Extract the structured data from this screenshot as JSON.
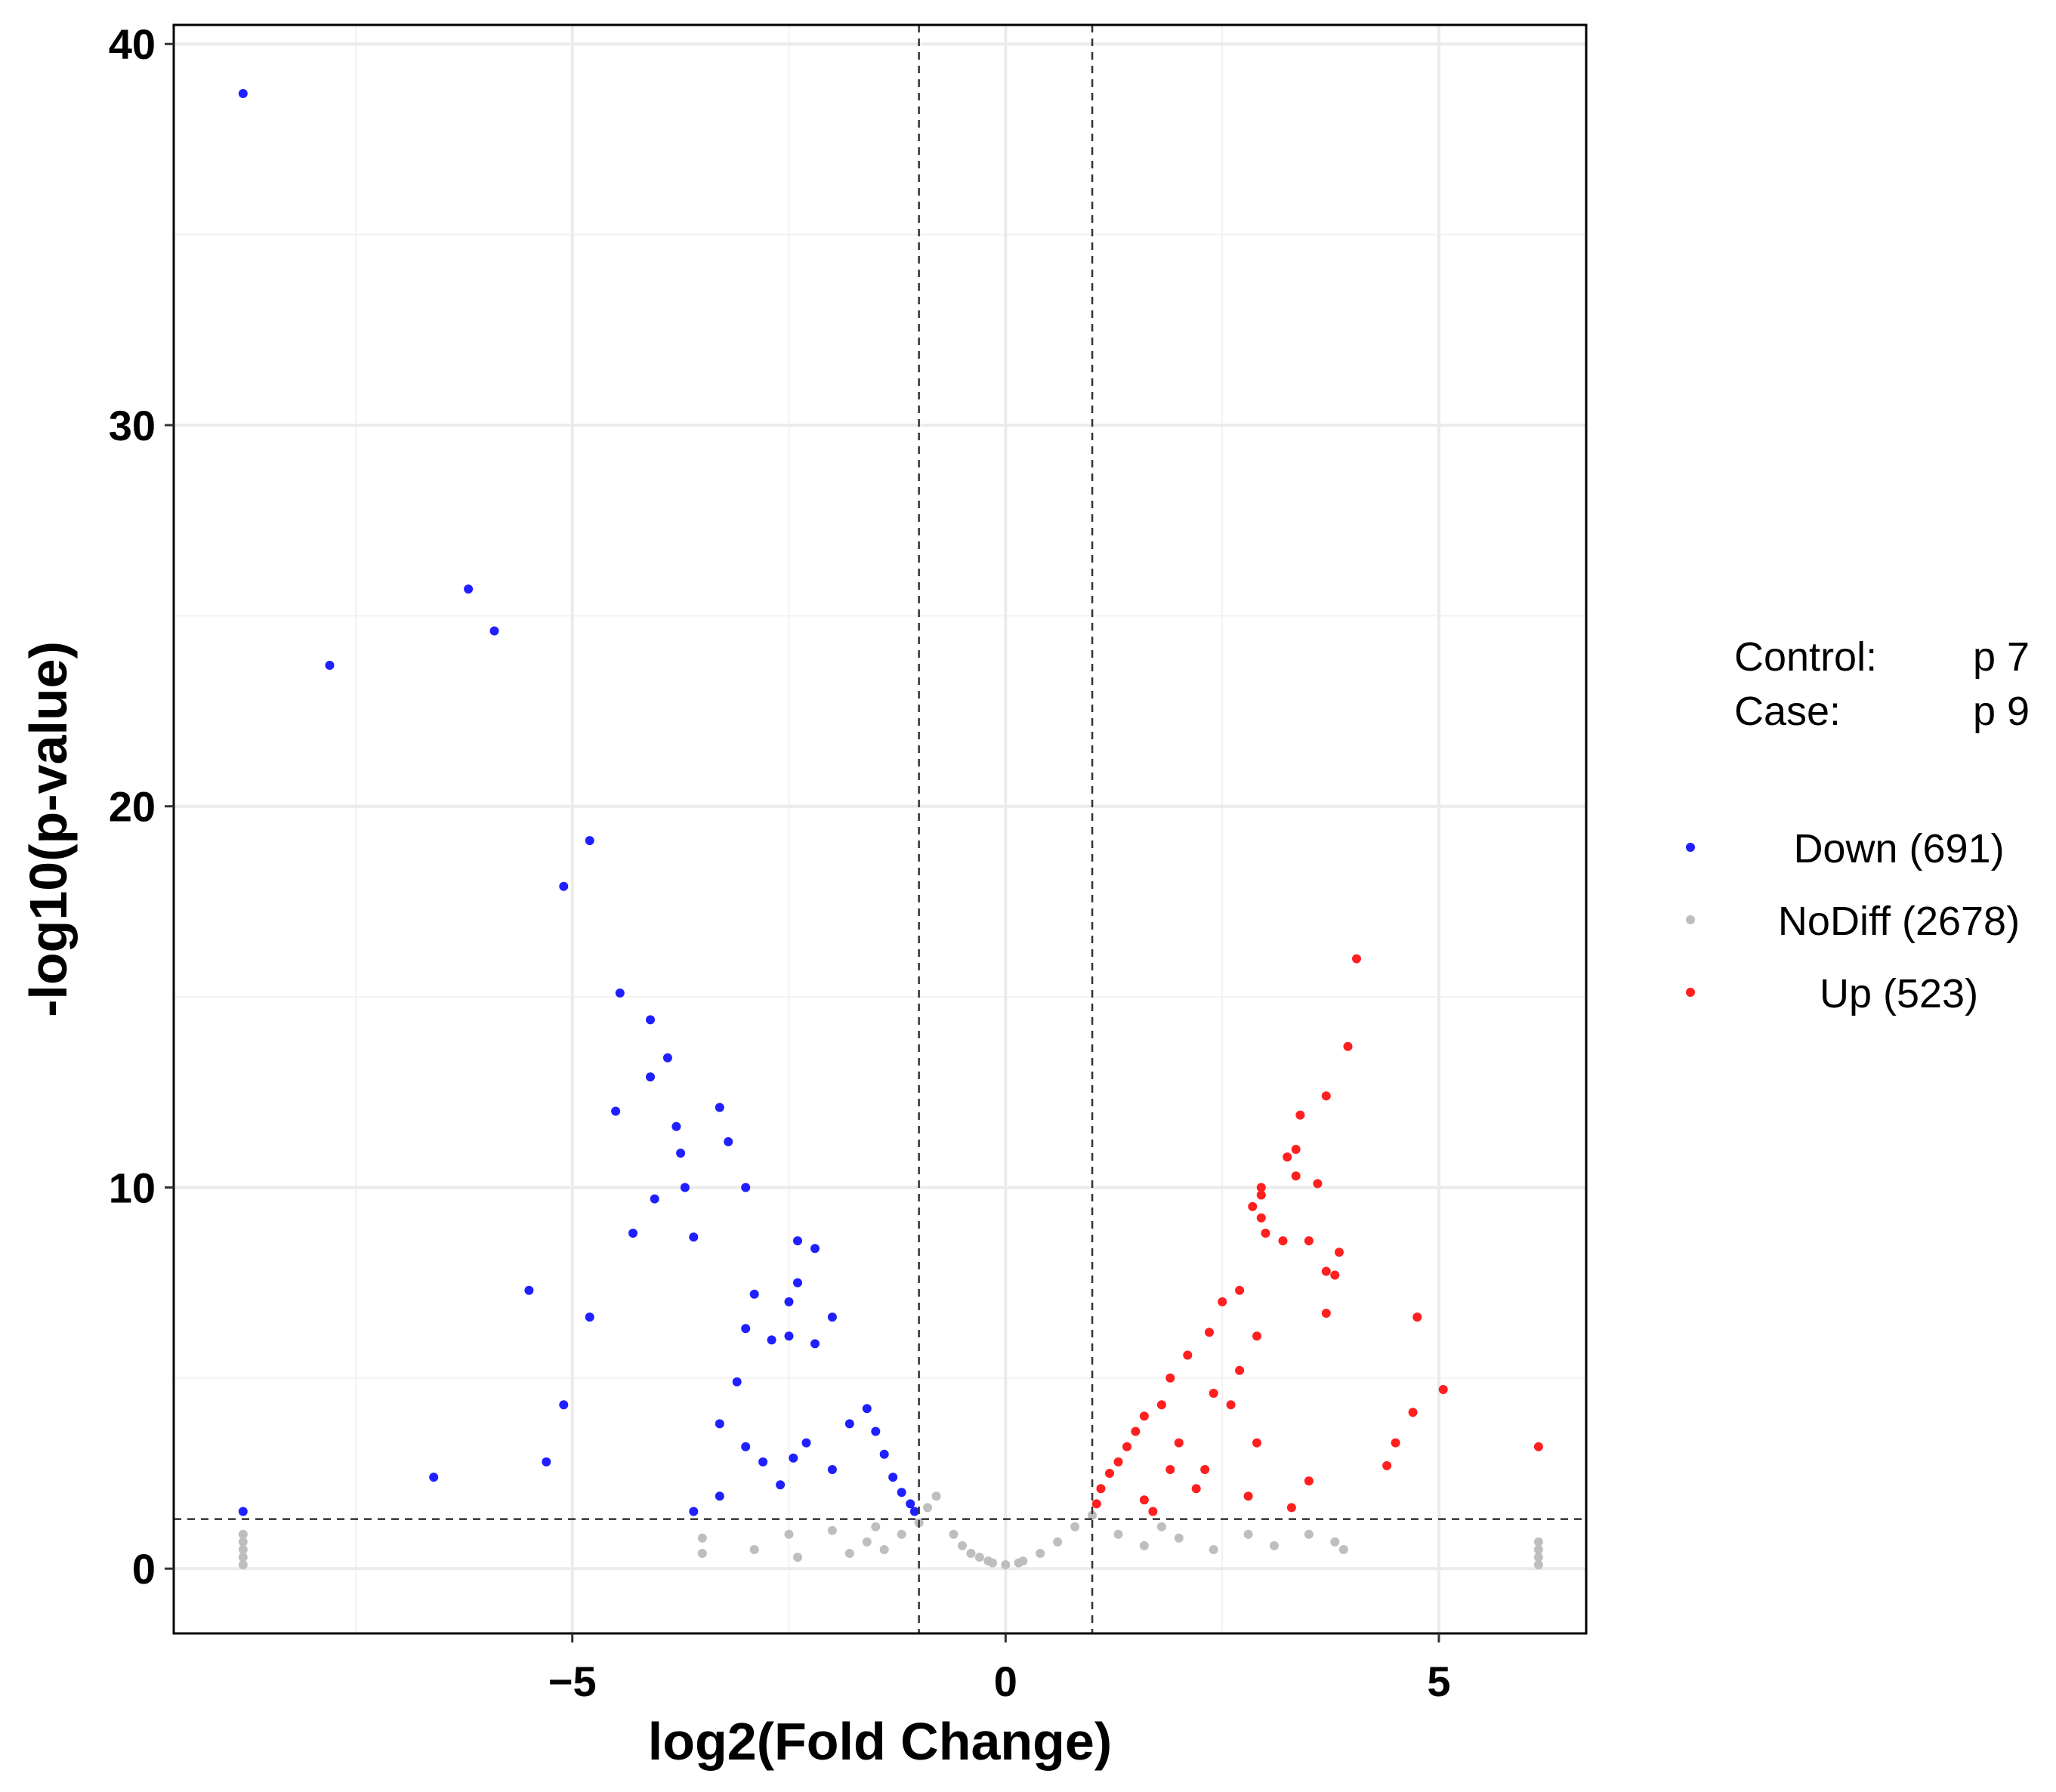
{
  "chart_data": {
    "type": "scatter",
    "title": "",
    "xlabel": "log2(Fold Change)",
    "ylabel": "-log10(p-value)",
    "xlim": [
      -9.6,
      6.7
    ],
    "ylim": [
      -1.7,
      40.5
    ],
    "x_ticks": [
      -5,
      0,
      5
    ],
    "x_tick_labels": [
      "−5",
      "0",
      "5"
    ],
    "y_ticks": [
      0,
      10,
      20,
      30,
      40
    ],
    "y_tick_labels": [
      "0",
      "10",
      "20",
      "30",
      "40"
    ],
    "grid": true,
    "thresholds": {
      "log2fc": [
        -1,
        1
      ],
      "neg_log10_p": 1.3
    },
    "info": {
      "control_label": "Control:",
      "control_value": "p 7",
      "case_label": "Case:",
      "case_value": "p 9"
    },
    "legend": {
      "position": "right",
      "entries": [
        {
          "name": "Down (691)",
          "color": "#1F1FFF"
        },
        {
          "name": "NoDiff (2678)",
          "color": "#BEBEBE"
        },
        {
          "name": "Up (523)",
          "color": "#FF1F1F"
        }
      ]
    },
    "series": [
      {
        "name": "Down",
        "color": "#1F1FFF",
        "count": 691,
        "points": [
          [
            -8.8,
            38.7
          ],
          [
            -7.8,
            23.7
          ],
          [
            -6.2,
            25.7
          ],
          [
            -5.9,
            24.6
          ],
          [
            -4.8,
            19.1
          ],
          [
            -5.1,
            17.9
          ],
          [
            -4.45,
            15.1
          ],
          [
            -4.1,
            14.4
          ],
          [
            -3.9,
            13.4
          ],
          [
            -4.1,
            12.9
          ],
          [
            -4.5,
            12.0
          ],
          [
            -3.8,
            11.6
          ],
          [
            -3.3,
            12.1
          ],
          [
            -3.2,
            11.2
          ],
          [
            -3.75,
            10.9
          ],
          [
            -3.0,
            10.0
          ],
          [
            -3.7,
            10.0
          ],
          [
            -4.05,
            9.7
          ],
          [
            -4.3,
            8.8
          ],
          [
            -3.6,
            8.7
          ],
          [
            -5.5,
            7.3
          ],
          [
            -4.8,
            6.6
          ],
          [
            -5.1,
            4.3
          ],
          [
            -5.3,
            2.8
          ],
          [
            -6.6,
            2.4
          ],
          [
            -3.6,
            1.5
          ],
          [
            -8.8,
            1.5
          ],
          [
            -3.3,
            1.9
          ],
          [
            -2.4,
            8.6
          ],
          [
            -2.2,
            8.4
          ],
          [
            -2.4,
            7.5
          ],
          [
            -2.5,
            7.0
          ],
          [
            -2.9,
            7.2
          ],
          [
            -2.0,
            6.6
          ],
          [
            -3.0,
            6.3
          ],
          [
            -2.7,
            6.0
          ],
          [
            -2.5,
            6.1
          ],
          [
            -2.2,
            5.9
          ],
          [
            -3.1,
            4.9
          ],
          [
            -3.3,
            3.8
          ],
          [
            -3.0,
            3.2
          ],
          [
            -2.8,
            2.8
          ],
          [
            -2.6,
            2.2
          ],
          [
            -2.3,
            3.3
          ],
          [
            -2.0,
            2.6
          ],
          [
            -1.8,
            3.8
          ],
          [
            -1.6,
            4.2
          ],
          [
            -1.5,
            3.6
          ],
          [
            -1.4,
            3.0
          ],
          [
            -1.3,
            2.4
          ],
          [
            -1.2,
            2.0
          ],
          [
            -1.1,
            1.7
          ],
          [
            -1.05,
            1.5
          ],
          [
            -2.45,
            2.9
          ]
        ]
      },
      {
        "name": "NoDiff",
        "color": "#BEBEBE",
        "count": 2678,
        "points": [
          [
            -8.8,
            0.1
          ],
          [
            -8.8,
            0.3
          ],
          [
            -8.8,
            0.5
          ],
          [
            -8.8,
            0.7
          ],
          [
            -8.8,
            0.9
          ],
          [
            6.15,
            0.1
          ],
          [
            6.15,
            0.3
          ],
          [
            6.15,
            0.5
          ],
          [
            6.15,
            0.7
          ],
          [
            -3.5,
            0.8
          ],
          [
            -3.5,
            0.4
          ],
          [
            -2.9,
            0.5
          ],
          [
            -2.5,
            0.9
          ],
          [
            -2.4,
            0.3
          ],
          [
            -2.0,
            1.0
          ],
          [
            -1.8,
            0.4
          ],
          [
            -1.6,
            0.7
          ],
          [
            -1.4,
            0.5
          ],
          [
            -1.2,
            0.9
          ],
          [
            -1.0,
            1.2
          ],
          [
            -0.9,
            1.6
          ],
          [
            -0.8,
            1.9
          ],
          [
            -0.6,
            0.9
          ],
          [
            -0.5,
            0.6
          ],
          [
            -0.4,
            0.4
          ],
          [
            -0.3,
            0.3
          ],
          [
            -0.2,
            0.2
          ],
          [
            0.0,
            0.1
          ],
          [
            0.2,
            0.2
          ],
          [
            0.4,
            0.4
          ],
          [
            0.6,
            0.7
          ],
          [
            0.8,
            1.1
          ],
          [
            1.0,
            1.4
          ],
          [
            1.3,
            0.9
          ],
          [
            1.6,
            0.6
          ],
          [
            2.0,
            0.8
          ],
          [
            2.4,
            0.5
          ],
          [
            2.8,
            0.9
          ],
          [
            3.1,
            0.6
          ],
          [
            3.5,
            0.9
          ],
          [
            3.8,
            0.7
          ],
          [
            3.9,
            0.5
          ],
          [
            1.8,
            1.1
          ],
          [
            -1.5,
            1.1
          ],
          [
            -0.15,
            0.15
          ],
          [
            0.15,
            0.15
          ]
        ]
      },
      {
        "name": "Up",
        "color": "#FF1F1F",
        "count": 523,
        "points": [
          [
            4.05,
            16.0
          ],
          [
            3.95,
            13.7
          ],
          [
            3.7,
            12.4
          ],
          [
            3.4,
            11.9
          ],
          [
            3.35,
            11.0
          ],
          [
            3.25,
            10.8
          ],
          [
            3.35,
            10.3
          ],
          [
            3.6,
            10.1
          ],
          [
            2.95,
            10.0
          ],
          [
            2.95,
            9.8
          ],
          [
            2.85,
            9.5
          ],
          [
            2.95,
            9.2
          ],
          [
            3.0,
            8.8
          ],
          [
            3.2,
            8.6
          ],
          [
            3.5,
            8.6
          ],
          [
            3.85,
            8.3
          ],
          [
            3.7,
            7.8
          ],
          [
            3.8,
            7.7
          ],
          [
            2.7,
            7.3
          ],
          [
            2.5,
            7.0
          ],
          [
            3.7,
            6.7
          ],
          [
            4.75,
            6.6
          ],
          [
            2.9,
            6.1
          ],
          [
            2.35,
            6.2
          ],
          [
            2.1,
            5.6
          ],
          [
            2.7,
            5.2
          ],
          [
            1.9,
            5.0
          ],
          [
            5.05,
            4.7
          ],
          [
            2.4,
            4.6
          ],
          [
            2.6,
            4.3
          ],
          [
            1.8,
            4.3
          ],
          [
            4.7,
            4.1
          ],
          [
            1.6,
            4.0
          ],
          [
            1.5,
            3.6
          ],
          [
            2.0,
            3.3
          ],
          [
            6.15,
            3.2
          ],
          [
            2.9,
            3.3
          ],
          [
            1.4,
            3.2
          ],
          [
            4.5,
            3.3
          ],
          [
            1.3,
            2.8
          ],
          [
            2.3,
            2.6
          ],
          [
            4.4,
            2.7
          ],
          [
            1.2,
            2.5
          ],
          [
            3.5,
            2.3
          ],
          [
            1.1,
            2.1
          ],
          [
            2.8,
            1.9
          ],
          [
            1.05,
            1.7
          ],
          [
            3.3,
            1.6
          ],
          [
            1.7,
            1.5
          ],
          [
            2.2,
            2.1
          ],
          [
            1.9,
            2.6
          ],
          [
            1.6,
            1.8
          ]
        ]
      }
    ]
  }
}
